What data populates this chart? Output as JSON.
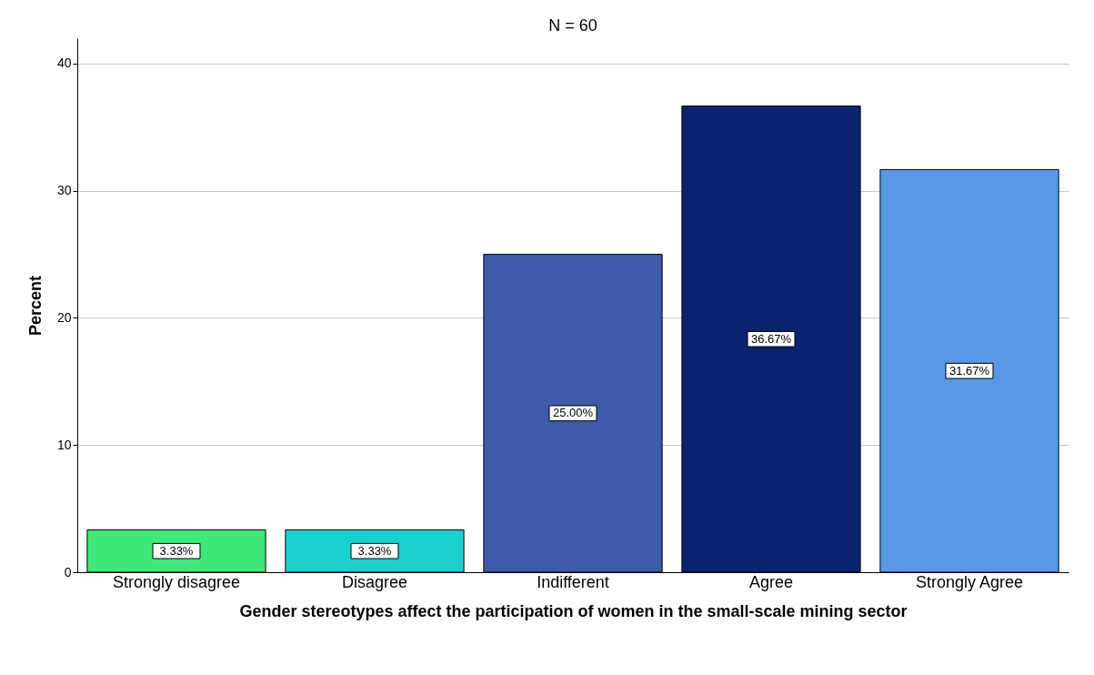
{
  "chart_data": {
    "type": "bar",
    "title": "N = 60",
    "xlabel": "Gender stereotypes affect the participation of women in the small-scale mining sector",
    "ylabel": "Percent",
    "categories": [
      "Strongly disagree",
      "Disagree",
      "Indifferent",
      "Agree",
      "Strongly Agree"
    ],
    "values": [
      3.33,
      3.33,
      25.0,
      36.67,
      31.67
    ],
    "colors": [
      "#3fe87a",
      "#1ccfcf",
      "#3f5aa8",
      "#0a236e",
      "#5799e5"
    ],
    "value_labels": [
      "3.33%",
      "3.33%",
      "25.00%",
      "36.67%",
      "31.67%"
    ],
    "ylim": [
      0,
      42
    ],
    "yticks": [
      0,
      10,
      20,
      30,
      40
    ],
    "grid": "y"
  }
}
